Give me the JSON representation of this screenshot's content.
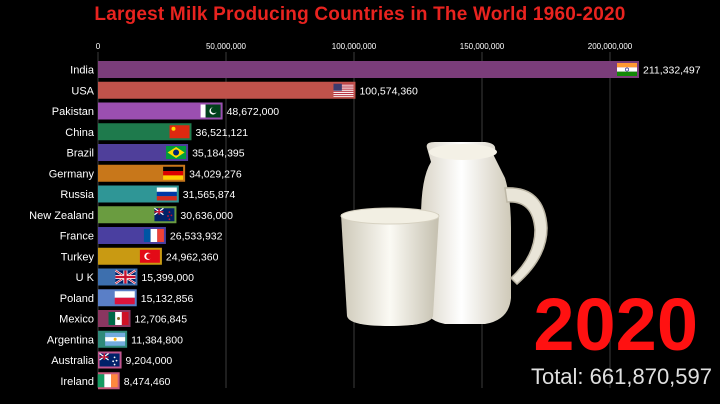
{
  "chart_data": {
    "type": "bar",
    "orientation": "horizontal",
    "title": "Largest Milk Producing Countries in The World 1960-2020",
    "categories": [
      "India",
      "USA",
      "Pakistan",
      "China",
      "Brazil",
      "Germany",
      "Russia",
      "New Zealand",
      "France",
      "Turkey",
      "U K",
      "Poland",
      "Mexico",
      "Argentina",
      "Australia",
      "Ireland"
    ],
    "values": [
      211332497,
      100574360,
      48672000,
      36521121,
      35184395,
      34029276,
      31565874,
      30636000,
      26533932,
      24962360,
      15399000,
      15132856,
      12706845,
      11384800,
      9204000,
      8474460
    ],
    "value_labels": [
      "211,332,497",
      "100,574,360",
      "48,672,000",
      "36,521,121",
      "35,184,395",
      "34,029,276",
      "31,565,874",
      "30,636,000",
      "26,533,932",
      "24,962,360",
      "15,399,000",
      "15,132,856",
      "12,706,845",
      "11,384,800",
      "9,204,000",
      "8,474,460"
    ],
    "bar_colors": [
      "#7b3d7a",
      "#c0524b",
      "#9b4fb0",
      "#1e7a4c",
      "#4f3f9a",
      "#c8771a",
      "#2f9696",
      "#6a9c40",
      "#4a3fa0",
      "#c99a12",
      "#3d6fae",
      "#5a7fc7",
      "#8a3660",
      "#2f8a7a",
      "#c0558e",
      "#c85a7c"
    ],
    "flags": [
      "india-flag",
      "usa-flag",
      "pakistan-flag",
      "china-flag",
      "brazil-flag",
      "germany-flag",
      "russia-flag",
      "new-zealand-flag",
      "france-flag",
      "turkey-flag",
      "uk-flag",
      "poland-flag",
      "mexico-flag",
      "argentina-flag",
      "australia-flag",
      "ireland-flag"
    ],
    "x_ticks": [
      0,
      50000000,
      100000000,
      150000000,
      200000000
    ],
    "x_tick_labels": [
      "0",
      "50,000,000",
      "100,000,000",
      "150,000,000",
      "200,000,000"
    ],
    "xlim": [
      0,
      211332497
    ],
    "grid": true,
    "year": "2020",
    "total_label": "Total: 661,870,597",
    "colors": {
      "title": "#e8231f",
      "year": "#ff1111",
      "background": "#000000"
    }
  }
}
